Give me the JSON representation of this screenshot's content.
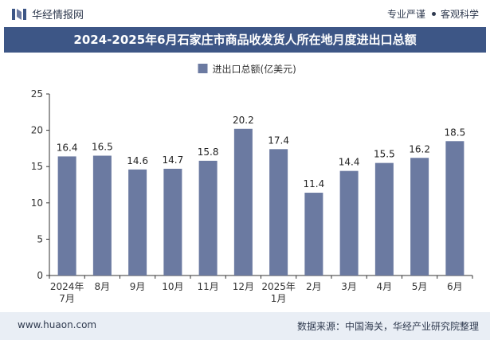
{
  "header": {
    "brand": "华经情报网",
    "tag_left": "专业严谨",
    "tag_right": "客观科学"
  },
  "footer": {
    "url": "www.huaon.com",
    "source": "数据来源：中国海关，华经产业研究院整理"
  },
  "colors": {
    "bar": "#6b7aa1",
    "title_bg": "#3d5686",
    "footer_bg": "#e9eef5"
  },
  "chart_data": {
    "type": "bar",
    "title": "2024-2025年6月石家庄市商品收发货人所在地月度进出口总额",
    "categories": [
      "2024年\n7月",
      "8月",
      "9月",
      "10月",
      "11月",
      "12月",
      "2025年\n1月",
      "2月",
      "3月",
      "4月",
      "5月",
      "6月"
    ],
    "series": [
      {
        "name": "进出口总额(亿美元)",
        "values": [
          16.4,
          16.5,
          14.6,
          14.7,
          15.8,
          20.2,
          17.4,
          11.4,
          14.4,
          15.5,
          16.2,
          18.5
        ]
      }
    ],
    "data_labels": [
      "16.4",
      "16.5",
      "14.6",
      "14.7",
      "15.8",
      "20.2",
      "17.4",
      "11.4",
      "14.4",
      "15.5",
      "16.2",
      "18.5"
    ],
    "ylim": [
      0,
      25
    ],
    "yticks": [
      0,
      5,
      10,
      15,
      20,
      25
    ],
    "legend_position": "top",
    "grid": false
  }
}
